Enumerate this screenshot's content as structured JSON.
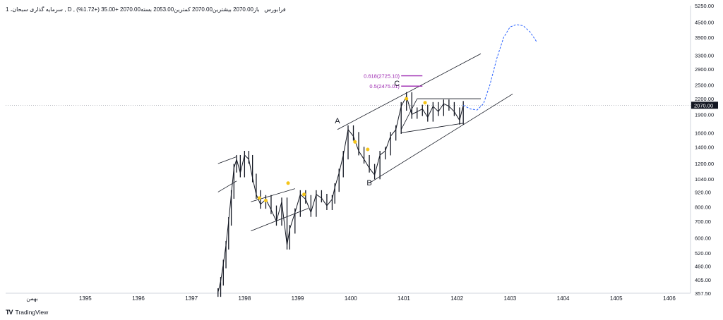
{
  "header": {
    "symbol": "سرمایه گذاری سبحان، 1",
    "interval": "D",
    "exchange": "فرابورس",
    "open_label": "باز",
    "open_value": "2070.00",
    "high_label": "بیشترین",
    "high_value": "2070.00",
    "low_label": "کمترین",
    "low_value": "2053.00",
    "close_label": "بسته",
    "close_value": "2070.00",
    "change": "+35.00 (+1.72%)"
  },
  "brand": {
    "name": "TradingView",
    "logo": "TV"
  },
  "colors": {
    "candles": "#131722",
    "trendlines": "#131722",
    "fib": "#9c27b0",
    "projection": "#2962ff",
    "markers": "#f5c518",
    "price_badge_bg": "#131722",
    "price_badge_text": "#ffffff",
    "current_price_line": "#9598a1"
  },
  "chart_data": {
    "type": "line",
    "scale": "log",
    "x_axis": {
      "labels": [
        "بهمن",
        "1395",
        "1396",
        "1397",
        "1398",
        "1399",
        "1400",
        "1401",
        "1402",
        "1403",
        "1404",
        "1405",
        "1406"
      ]
    },
    "y_axis": {
      "ticks": [
        "5250.00",
        "4500.00",
        "3900.00",
        "3300.00",
        "2900.00",
        "2500.00",
        "2200.00",
        "1900.00",
        "1600.00",
        "1400.00",
        "1200.00",
        "1040.00",
        "920.00",
        "800.00",
        "700.00",
        "600.00",
        "520.00",
        "460.00",
        "405.00",
        "357.50"
      ],
      "range": [
        357.5,
        5250
      ]
    },
    "current_price": "2070.00",
    "series": [
      {
        "x": [
          1398.0,
          1398.05,
          1398.1,
          1398.15,
          1398.2,
          1398.25,
          1398.3,
          1398.35,
          1398.42,
          1398.5,
          1398.58,
          1398.65,
          1398.72,
          1398.8,
          1398.9,
          1399.0,
          1399.1,
          1399.2,
          1399.3,
          1399.35,
          1399.45,
          1399.55,
          1399.65,
          1399.75,
          1399.85,
          1399.95,
          1400.05,
          1400.15,
          1400.2,
          1400.28,
          1400.36,
          1400.45,
          1400.55,
          1400.65,
          1400.75,
          1400.85,
          1400.95,
          1401.05,
          1401.15,
          1401.25,
          1401.35,
          1401.45,
          1401.55,
          1401.65,
          1401.75,
          1401.85,
          1401.95,
          1402.05,
          1402.15,
          1402.25,
          1402.35,
          1402.45,
          1402.55,
          1402.62
        ],
        "values": [
          360,
          400,
          470,
          560,
          700,
          900,
          1150,
          1250,
          1100,
          1300,
          1250,
          1050,
          900,
          820,
          860,
          780,
          700,
          840,
          560,
          650,
          760,
          900,
          860,
          760,
          900,
          870,
          810,
          860,
          960,
          1100,
          1300,
          1650,
          1550,
          1350,
          1250,
          1150,
          1080,
          1300,
          1350,
          1550,
          1650,
          2050,
          2250,
          1900,
          1950,
          2000,
          1850,
          2050,
          1950,
          2100,
          2050,
          1950,
          1800,
          2070
        ]
      }
    ],
    "projection": {
      "x": [
        1402.62,
        1402.75,
        1402.88,
        1403.0,
        1403.12,
        1403.25,
        1403.38,
        1403.5,
        1403.62,
        1403.75,
        1403.88,
        1404.0
      ],
      "values": [
        2070,
        2000,
        1980,
        2100,
        2500,
        3200,
        3900,
        4300,
        4400,
        4350,
        4100,
        3750
      ]
    },
    "wave_labels": [
      {
        "text": "A",
        "x": 1400.25,
        "value": 1750
      },
      {
        "text": "B",
        "x": 1400.85,
        "value": 980
      },
      {
        "text": "C",
        "x": 1401.37,
        "value": 2475
      }
    ],
    "fib_levels": [
      {
        "label": "0.618(2725.10)",
        "value": 2725.1
      },
      {
        "label": "0.5(2475.01)",
        "value": 2475.01
      }
    ],
    "markers": [
      {
        "x": 1398.78,
        "value": 870
      },
      {
        "x": 1398.9,
        "value": 850
      },
      {
        "x": 1399.32,
        "value": 1000
      },
      {
        "x": 1399.62,
        "value": 900
      },
      {
        "x": 1400.58,
        "value": 1470
      },
      {
        "x": 1400.82,
        "value": 1370
      },
      {
        "x": 1401.55,
        "value": 2200
      },
      {
        "x": 1401.9,
        "value": 2120
      }
    ],
    "trend_channels": [
      {
        "x1": 1398.0,
        "v1": 1200,
        "x2": 1398.35,
        "v2": 1280
      },
      {
        "x1": 1398.0,
        "v1": 920,
        "x2": 1398.35,
        "v2": 1020
      },
      {
        "x1": 1398.62,
        "v1": 840,
        "x2": 1399.45,
        "v2": 950
      },
      {
        "x1": 1398.62,
        "v1": 640,
        "x2": 1399.7,
        "v2": 790
      },
      {
        "x1": 1400.25,
        "v1": 1650,
        "x2": 1402.95,
        "v2": 3350
      },
      {
        "x1": 1400.85,
        "v1": 1000,
        "x2": 1403.55,
        "v2": 2300
      },
      {
        "x1": 1401.45,
        "v1": 1650,
        "x2": 1401.75,
        "v2": 2200
      },
      {
        "x1": 1401.75,
        "v1": 2200,
        "x2": 1402.95,
        "v2": 2200
      },
      {
        "x1": 1401.45,
        "v1": 1600,
        "x2": 1402.62,
        "v2": 1750
      }
    ]
  }
}
